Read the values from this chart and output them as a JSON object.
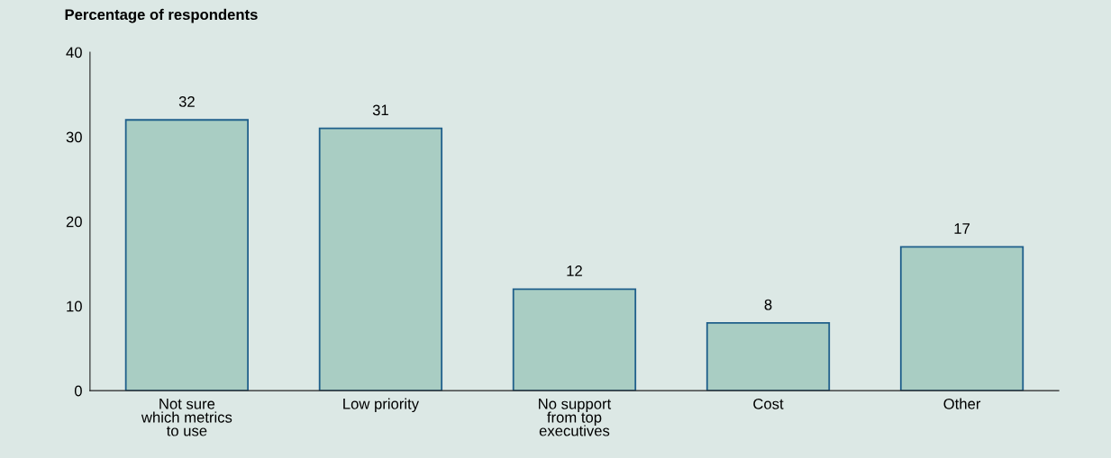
{
  "chart_data": {
    "type": "bar",
    "ylabel": "Percentage of respondents",
    "categories": [
      "Not sure\nwhich metrics\nto use",
      "Low priority",
      "No support\nfrom top\nexecutives",
      "Cost",
      "Other"
    ],
    "values": [
      32,
      31,
      12,
      8,
      17
    ],
    "color": "#a9cdc3",
    "ylim": [
      0,
      40
    ],
    "yticks": [
      0,
      10,
      20,
      30,
      40
    ],
    "grid": false,
    "data_labels": true
  }
}
